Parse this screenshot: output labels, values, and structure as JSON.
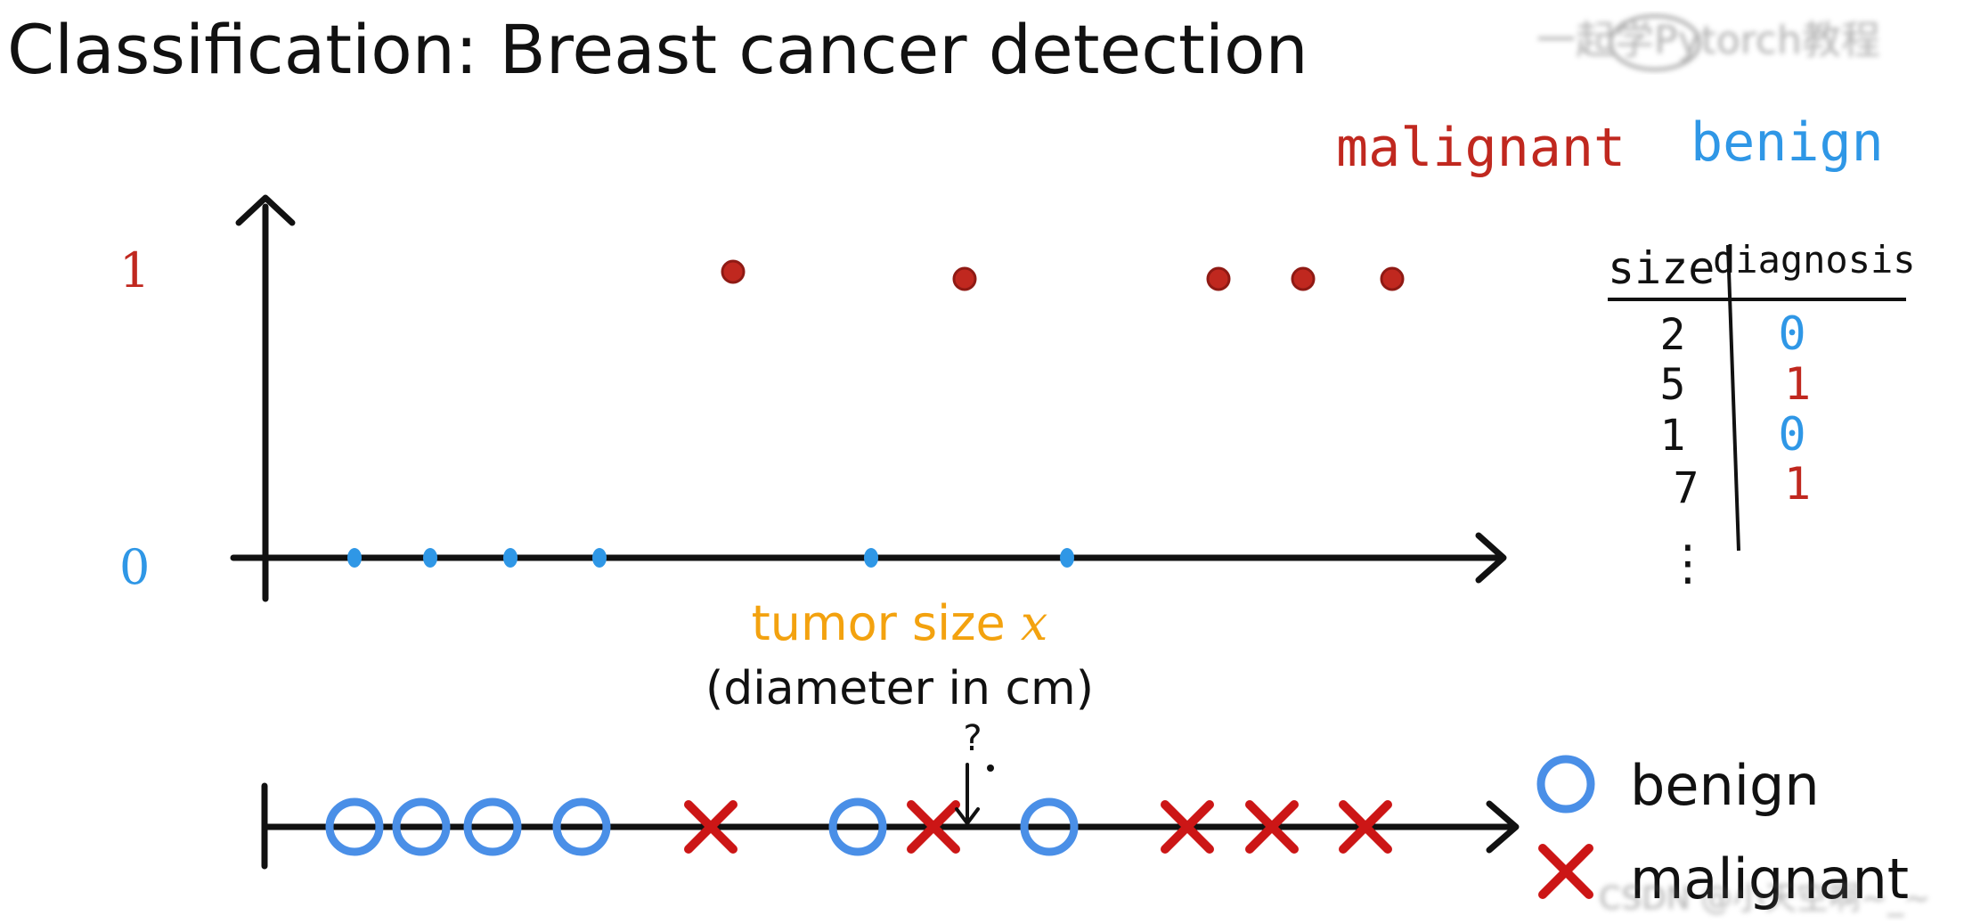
{
  "title": "Classification: Breast cancer detection",
  "watermark": "一起学Pytorch教程",
  "footer_watermark": "CSDN @小天空啊~_~",
  "legend_top": {
    "malignant": "malignant",
    "benign": "benign"
  },
  "legend_bottom": {
    "benign": "benign",
    "malignant": "malignant"
  },
  "colors": {
    "malignant": "#c0281f",
    "benign": "#2f97e6",
    "ring": "#4a8fe7",
    "cross": "#cc1616",
    "xlabel": "#f3a20f",
    "ink": "#111111"
  },
  "table": {
    "headers": [
      "size",
      "diagnosis"
    ],
    "rows": [
      {
        "size": "2",
        "diagnosis": "0"
      },
      {
        "size": "5",
        "diagnosis": "1"
      },
      {
        "size": "1",
        "diagnosis": "0"
      },
      {
        "size": "7",
        "diagnosis": "1"
      }
    ],
    "ellipsis": "⋮"
  },
  "question_mark": "?",
  "chart_data": [
    {
      "type": "scatter",
      "title": "",
      "xlabel": "tumor size x",
      "xlabel_main": "tumor size ",
      "xlabel_var": "x",
      "xlabel_sub": "(diameter in cm)",
      "ylabel": "",
      "yticks": [
        "1",
        "0"
      ],
      "ylim": [
        0,
        1
      ],
      "xlim": [
        0,
        14
      ],
      "series": [
        {
          "name": "benign",
          "x": [
            1.0,
            1.85,
            2.75,
            3.75,
            6.8,
            9.0
          ],
          "y": [
            0,
            0,
            0,
            0,
            0,
            0
          ]
        },
        {
          "name": "malignant",
          "x": [
            5.25,
            7.85,
            10.7,
            11.65,
            12.65
          ],
          "y": [
            1,
            1,
            1,
            1,
            1
          ]
        }
      ]
    },
    {
      "type": "scatter",
      "title": "",
      "xlim": [
        0,
        14
      ],
      "series": [
        {
          "name": "benign",
          "marker": "circle",
          "x": [
            1.0,
            1.75,
            2.55,
            3.55,
            6.65,
            8.8
          ]
        },
        {
          "name": "malignant",
          "marker": "cross",
          "x": [
            5.0,
            7.5,
            10.35,
            11.3,
            12.35
          ]
        }
      ],
      "query_x": 8.0
    }
  ]
}
